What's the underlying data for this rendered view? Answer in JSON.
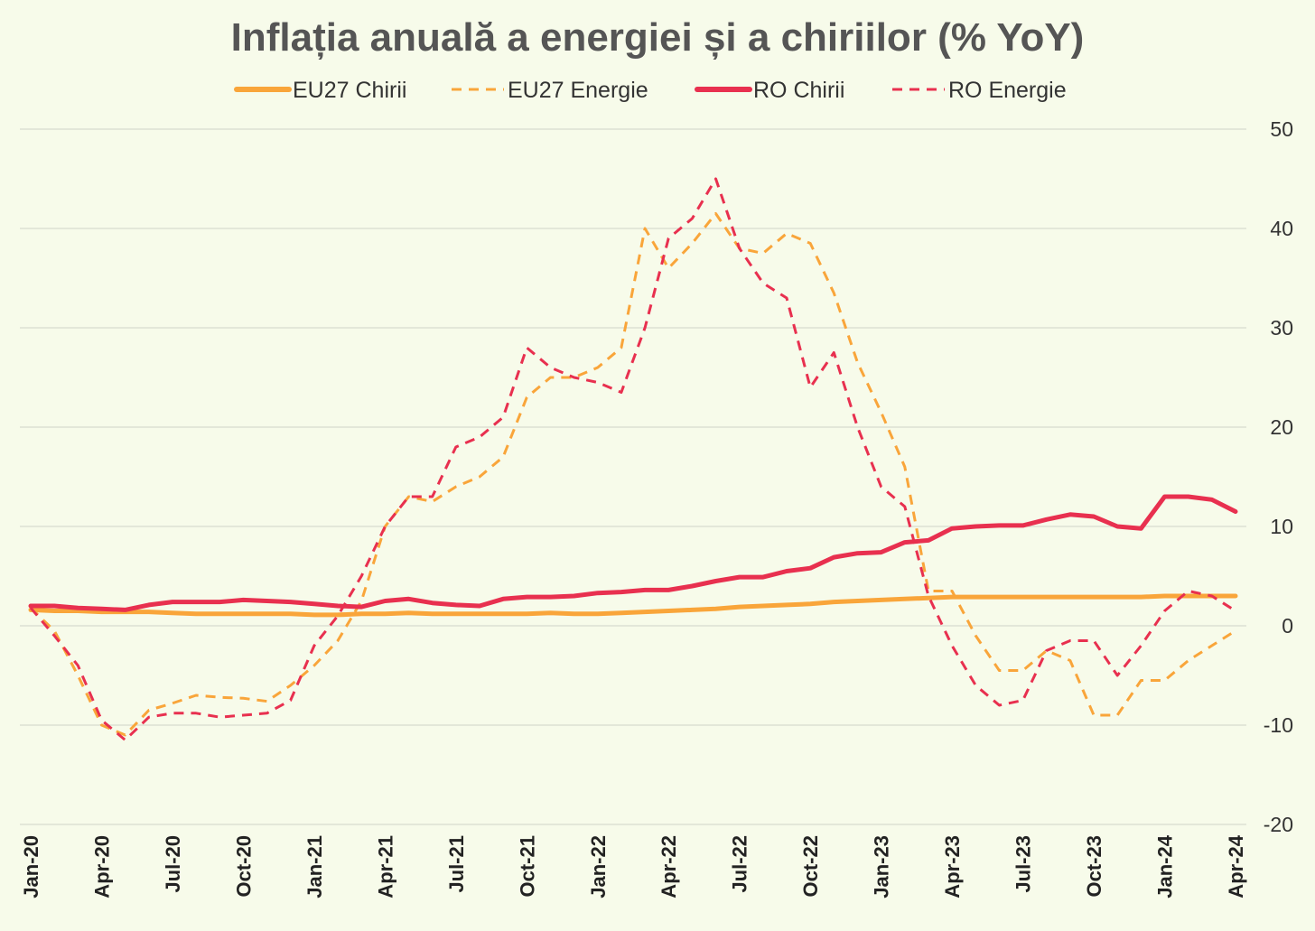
{
  "chart_data": {
    "type": "line",
    "title": "Inflația anuală a energiei și a chiriilor (% YoY)",
    "xlabel": "",
    "ylabel": "",
    "ylim": [
      -20,
      50
    ],
    "yticks": [
      50,
      40,
      30,
      20,
      10,
      0,
      -10,
      -20
    ],
    "y_axis_position": "right",
    "grid": true,
    "legend_position": "top",
    "x_tick_labels": [
      "Jan-20",
      "Apr-20",
      "Jul-20",
      "Oct-20",
      "Jan-21",
      "Apr-21",
      "Jul-21",
      "Oct-21",
      "Jan-22",
      "Apr-22",
      "Jul-22",
      "Oct-22",
      "Jan-23",
      "Apr-23",
      "Jul-23",
      "Oct-23",
      "Jan-24",
      "Apr-24"
    ],
    "x_months": [
      "Jan-20",
      "Feb-20",
      "Mar-20",
      "Apr-20",
      "May-20",
      "Jun-20",
      "Jul-20",
      "Aug-20",
      "Sep-20",
      "Oct-20",
      "Nov-20",
      "Dec-20",
      "Jan-21",
      "Feb-21",
      "Mar-21",
      "Apr-21",
      "May-21",
      "Jun-21",
      "Jul-21",
      "Aug-21",
      "Sep-21",
      "Oct-21",
      "Nov-21",
      "Dec-21",
      "Jan-22",
      "Feb-22",
      "Mar-22",
      "Apr-22",
      "May-22",
      "Jun-22",
      "Jul-22",
      "Aug-22",
      "Sep-22",
      "Oct-22",
      "Nov-22",
      "Dec-22",
      "Jan-23",
      "Feb-23",
      "Mar-23",
      "Apr-23",
      "May-23",
      "Jun-23",
      "Jul-23",
      "Aug-23",
      "Sep-23",
      "Oct-23",
      "Nov-23",
      "Dec-23",
      "Jan-24",
      "Feb-24",
      "Mar-24",
      "Apr-24"
    ],
    "series": [
      {
        "name": "EU27 Chirii",
        "color": "#f9a53a",
        "style": "solid",
        "values": [
          1.6,
          1.5,
          1.5,
          1.4,
          1.4,
          1.4,
          1.3,
          1.2,
          1.2,
          1.2,
          1.2,
          1.2,
          1.1,
          1.1,
          1.2,
          1.2,
          1.3,
          1.2,
          1.2,
          1.2,
          1.2,
          1.2,
          1.3,
          1.2,
          1.2,
          1.3,
          1.4,
          1.5,
          1.6,
          1.7,
          1.9,
          2.0,
          2.1,
          2.2,
          2.4,
          2.5,
          2.6,
          2.7,
          2.8,
          2.9,
          2.9,
          2.9,
          2.9,
          2.9,
          2.9,
          2.9,
          2.9,
          2.9,
          3.0,
          3.0,
          3.0,
          3.0
        ]
      },
      {
        "name": "EU27 Energie",
        "color": "#f9a53a",
        "style": "dashed",
        "values": [
          1.8,
          -0.5,
          -5.0,
          -10.0,
          -11.0,
          -8.5,
          -7.8,
          -7.0,
          -7.2,
          -7.3,
          -7.6,
          -6.0,
          -4.0,
          -1.5,
          2.5,
          10.0,
          13.0,
          12.5,
          14.0,
          15.0,
          17.0,
          23.0,
          25.0,
          25.0,
          26.0,
          28.0,
          40.0,
          36.0,
          38.5,
          41.5,
          38.0,
          37.5,
          39.5,
          38.5,
          33.5,
          26.5,
          21.5,
          16.0,
          3.5,
          3.5,
          -1.0,
          -4.5,
          -4.5,
          -2.5,
          -3.5,
          -9.0,
          -9.0,
          -5.5,
          -5.5,
          -3.5,
          -2.0,
          -0.5
        ]
      },
      {
        "name": "RO  Chirii",
        "color": "#e8304f",
        "style": "solid",
        "values": [
          2.0,
          2.0,
          1.8,
          1.7,
          1.6,
          2.1,
          2.4,
          2.4,
          2.4,
          2.6,
          2.5,
          2.4,
          2.2,
          2.0,
          1.9,
          2.5,
          2.7,
          2.3,
          2.1,
          2.0,
          2.7,
          2.9,
          2.9,
          3.0,
          3.3,
          3.4,
          3.6,
          3.6,
          4.0,
          4.5,
          4.9,
          4.9,
          5.5,
          5.8,
          6.9,
          7.3,
          7.4,
          8.4,
          8.6,
          9.8,
          10.0,
          10.1,
          10.1,
          10.7,
          11.2,
          11.0,
          10.0,
          9.8,
          13.0,
          13.0,
          12.7,
          11.5
        ]
      },
      {
        "name": "RO  Energie",
        "color": "#e8304f",
        "style": "dashed",
        "values": [
          1.8,
          -1.0,
          -4.0,
          -9.5,
          -11.5,
          -9.2,
          -8.8,
          -8.8,
          -9.2,
          -9.0,
          -8.8,
          -7.5,
          -2.0,
          1.0,
          5.0,
          10.0,
          13.0,
          13.0,
          18.0,
          19.0,
          21.0,
          28.0,
          26.0,
          25.0,
          24.5,
          23.5,
          30.0,
          39.0,
          41.0,
          45.0,
          38.0,
          34.5,
          33.0,
          24.0,
          27.5,
          20.0,
          14.0,
          12.0,
          3.0,
          -2.0,
          -6.0,
          -8.0,
          -7.5,
          -2.5,
          -1.5,
          -1.5,
          -5.0,
          -2.0,
          1.5,
          3.5,
          3.0,
          1.5
        ]
      }
    ]
  }
}
